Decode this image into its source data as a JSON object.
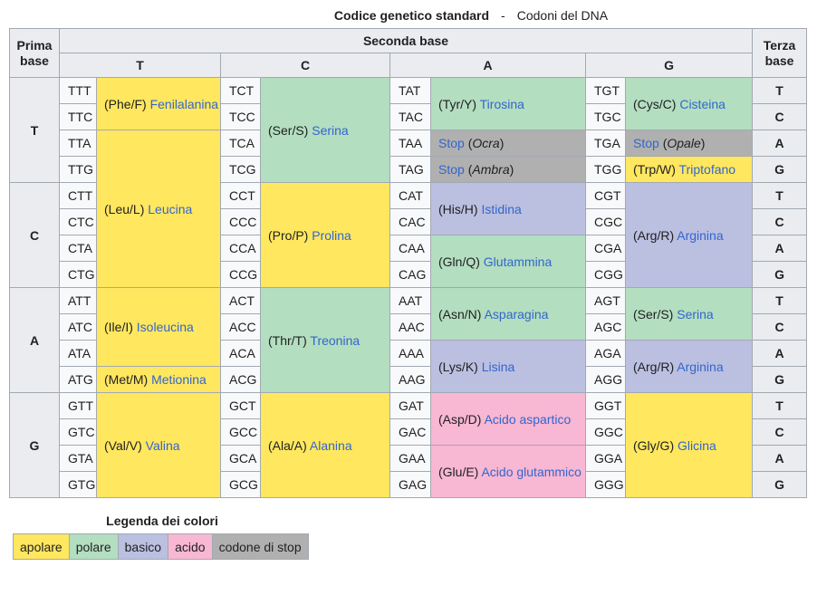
{
  "title": {
    "bold": "Codice genetico standard",
    "separator": "-",
    "regular": "Codoni del DNA"
  },
  "colors": {
    "apolare": "#FFE75F",
    "polare": "#B3DEC0",
    "basico": "#BBBFE0",
    "acido": "#F8B7D3",
    "stop": "#B0B0B0",
    "header_bg": "#EAECF0",
    "cell_bg": "#F8F9FA",
    "border": "#A2A9B1",
    "link": "#3366CC",
    "text": "#202122"
  },
  "table": {
    "header": {
      "first": "Prima base",
      "second": "Seconda base",
      "third": "Terza base",
      "bases": [
        "T",
        "C",
        "A",
        "G"
      ]
    },
    "first_base_letters": [
      "T",
      "C",
      "A",
      "G"
    ],
    "third_base_letters": [
      "T",
      "C",
      "A",
      "G"
    ],
    "columns": [
      {
        "base": "T",
        "codons": [
          "TTT",
          "TTC",
          "TTA",
          "TTG",
          "CTT",
          "CTC",
          "CTA",
          "CTG",
          "ATT",
          "ATC",
          "ATA",
          "ATG",
          "GTT",
          "GTC",
          "GTA",
          "GTG"
        ],
        "cells": [
          {
            "row": 0,
            "span": 2,
            "color": "apolare",
            "abbr": "(Phe/F)",
            "name": "Fenilalanina"
          },
          {
            "row": 2,
            "span": 6,
            "color": "apolare",
            "abbr": "(Leu/L)",
            "name": "Leucina"
          },
          {
            "row": 8,
            "span": 3,
            "color": "apolare",
            "abbr": "(Ile/I)",
            "name": "Isoleucina"
          },
          {
            "row": 11,
            "span": 1,
            "color": "apolare",
            "abbr": "(Met/M)",
            "name": "Metionina"
          },
          {
            "row": 12,
            "span": 4,
            "color": "apolare",
            "abbr": "(Val/V)",
            "name": "Valina"
          }
        ]
      },
      {
        "base": "C",
        "codons": [
          "TCT",
          "TCC",
          "TCA",
          "TCG",
          "CCT",
          "CCC",
          "CCA",
          "CCG",
          "ACT",
          "ACC",
          "ACA",
          "ACG",
          "GCT",
          "GCC",
          "GCA",
          "GCG"
        ],
        "cells": [
          {
            "row": 0,
            "span": 4,
            "color": "polare",
            "abbr": "(Ser/S)",
            "name": "Serina"
          },
          {
            "row": 4,
            "span": 4,
            "color": "apolare",
            "abbr": "(Pro/P)",
            "name": "Prolina"
          },
          {
            "row": 8,
            "span": 4,
            "color": "polare",
            "abbr": "(Thr/T)",
            "name": "Treonina"
          },
          {
            "row": 12,
            "span": 4,
            "color": "apolare",
            "abbr": "(Ala/A)",
            "name": "Alanina"
          }
        ]
      },
      {
        "base": "A",
        "codons": [
          "TAT",
          "TAC",
          "TAA",
          "TAG",
          "CAT",
          "CAC",
          "CAA",
          "CAG",
          "AAT",
          "AAC",
          "AAA",
          "AAG",
          "GAT",
          "GAC",
          "GAA",
          "GAG"
        ],
        "cells": [
          {
            "row": 0,
            "span": 2,
            "color": "polare",
            "abbr": "(Tyr/Y)",
            "name": "Tirosina"
          },
          {
            "row": 2,
            "span": 1,
            "color": "stop",
            "name": "Stop",
            "note_italic": "Ocra"
          },
          {
            "row": 3,
            "span": 1,
            "color": "stop",
            "name": "Stop",
            "note_italic": "Ambra"
          },
          {
            "row": 4,
            "span": 2,
            "color": "basico",
            "abbr": "(His/H)",
            "name": "Istidina"
          },
          {
            "row": 6,
            "span": 2,
            "color": "polare",
            "abbr": "(Gln/Q)",
            "name": "Glutammina"
          },
          {
            "row": 8,
            "span": 2,
            "color": "polare",
            "abbr": "(Asn/N)",
            "name": "Asparagina"
          },
          {
            "row": 10,
            "span": 2,
            "color": "basico",
            "abbr": "(Lys/K)",
            "name": "Lisina"
          },
          {
            "row": 12,
            "span": 2,
            "color": "acido",
            "abbr": "(Asp/D)",
            "name": "Acido aspartico"
          },
          {
            "row": 14,
            "span": 2,
            "color": "acido",
            "abbr": "(Glu/E)",
            "name": "Acido glutammico"
          }
        ]
      },
      {
        "base": "G",
        "codons": [
          "TGT",
          "TGC",
          "TGA",
          "TGG",
          "CGT",
          "CGC",
          "CGA",
          "CGG",
          "AGT",
          "AGC",
          "AGA",
          "AGG",
          "GGT",
          "GGC",
          "GGA",
          "GGG"
        ],
        "cells": [
          {
            "row": 0,
            "span": 2,
            "color": "polare",
            "abbr": "(Cys/C)",
            "name": "Cisteina"
          },
          {
            "row": 2,
            "span": 1,
            "color": "stop",
            "name": "Stop",
            "note_italic": "Opale"
          },
          {
            "row": 3,
            "span": 1,
            "color": "apolare",
            "abbr": "(Trp/W)",
            "name": "Triptofano"
          },
          {
            "row": 4,
            "span": 4,
            "color": "basico",
            "abbr": "(Arg/R)",
            "name": "Arginina"
          },
          {
            "row": 8,
            "span": 2,
            "color": "polare",
            "abbr": "(Ser/S)",
            "name": "Serina"
          },
          {
            "row": 10,
            "span": 2,
            "color": "basico",
            "abbr": "(Arg/R)",
            "name": "Arginina"
          },
          {
            "row": 12,
            "span": 4,
            "color": "apolare",
            "abbr": "(Gly/G)",
            "name": "Glicina"
          }
        ]
      }
    ]
  },
  "legend": {
    "title": "Legenda dei colori",
    "items": [
      {
        "label": "apolare",
        "color": "apolare"
      },
      {
        "label": "polare",
        "color": "polare"
      },
      {
        "label": "basico",
        "color": "basico"
      },
      {
        "label": "acido",
        "color": "acido"
      },
      {
        "label": "codone di stop",
        "color": "stop"
      }
    ]
  }
}
